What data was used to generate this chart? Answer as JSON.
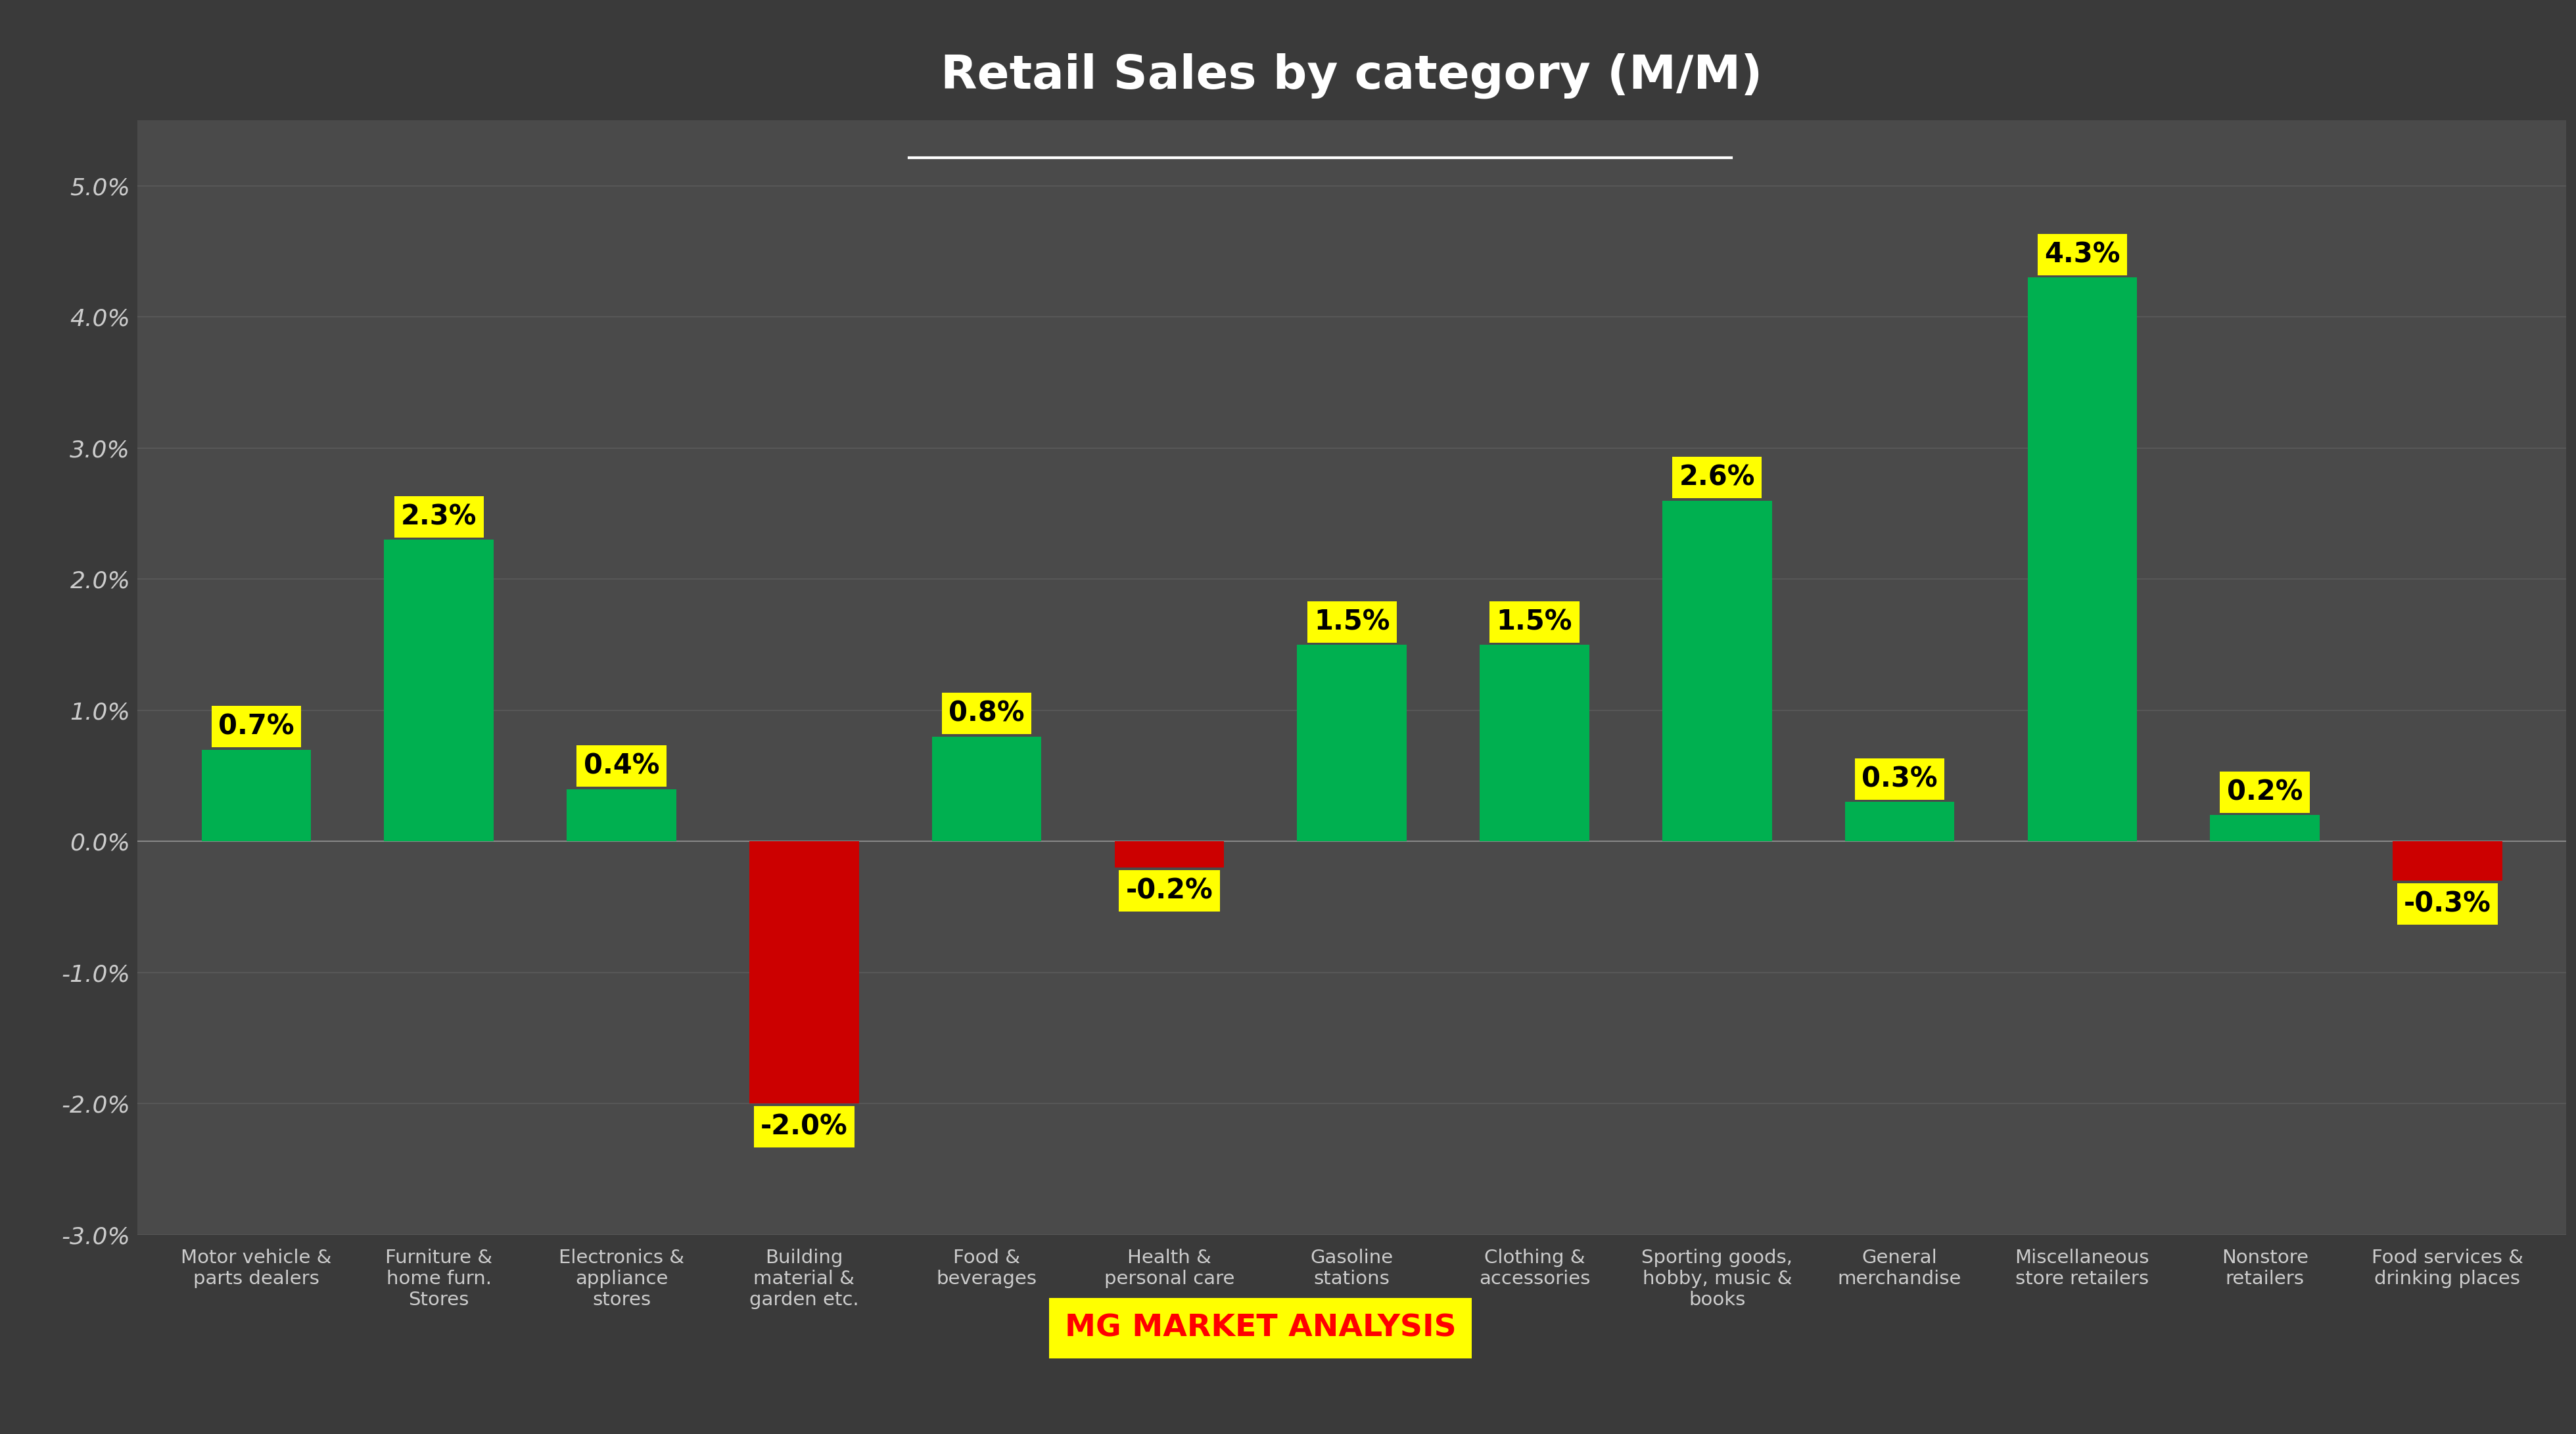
{
  "title": "Retail Sales by category (M/M)",
  "categories": [
    "Motor vehicle &\nparts dealers",
    "Furniture &\nhome furn.\nStores",
    "Electronics &\nappliance\nstores",
    "Building\nmaterial &\ngarden etc.",
    "Food &\nbeverages",
    "Health &\npersonal care",
    "Gasoline\nstations",
    "Clothing &\naccessories",
    "Sporting goods,\nhobby, music &\nbooks",
    "General\nmerchandise",
    "Miscellaneous\nstore retailers",
    "Nonstore\nretailers",
    "Food services &\ndrinking places"
  ],
  "values": [
    0.7,
    2.3,
    0.4,
    -2.0,
    0.8,
    -0.2,
    1.5,
    1.5,
    2.6,
    0.3,
    4.3,
    0.2,
    -0.3
  ],
  "bar_colors_positive": "#00b050",
  "bar_colors_negative": "#cc0000",
  "label_bg_color": "#ffff00",
  "label_text_color": "#000000",
  "background_color": "#3a3a3a",
  "plot_bg_color": "#4a4a4a",
  "grid_color": "#5a5a5a",
  "tick_color": "#cccccc",
  "title_color": "#ffffff",
  "ylim": [
    -3.0,
    5.5
  ],
  "subtitle_text": "MG MARKET ANALYSIS",
  "subtitle_color": "#ff0000",
  "subtitle_bg": "#ffff00",
  "bar_width": 0.6
}
